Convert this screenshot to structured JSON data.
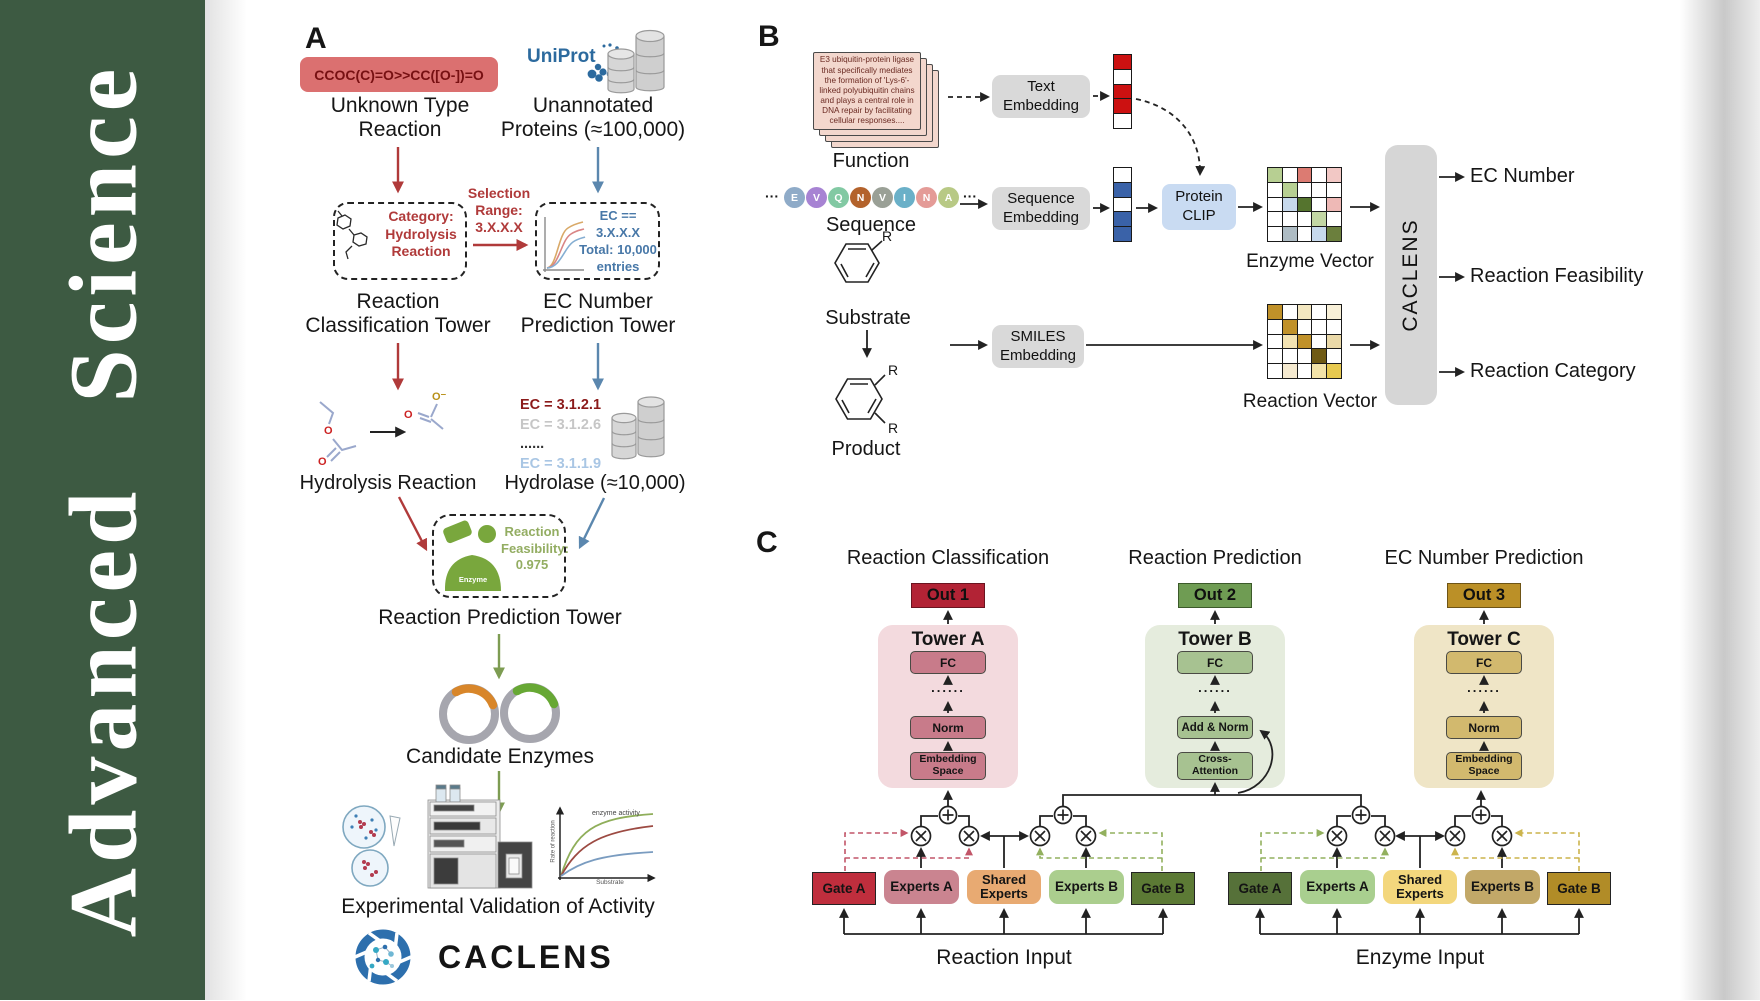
{
  "banner": {
    "title": "Advanced Science",
    "bg_color": "#3d5a42"
  },
  "panel_a": {
    "label": "A",
    "smiles": "CCOC(C)=O>>CC([O-])=O",
    "unknown_reaction": "Unknown Type\nReaction",
    "uniprot": "UniProt",
    "unannotated_proteins": "Unannotated\nProteins (≈100,000)",
    "category_box": "Category:\nHydrolysis\nReaction",
    "selection_range": "Selection\nRange:\n3.X.X.X",
    "ec_box": "EC == 3.X.X.X\nTotal: 10,000\nentries",
    "classification_tower": "Reaction\nClassification Tower",
    "ec_prediction_tower": "EC Number\nPrediction Tower",
    "hydrolysis_reaction": "Hydrolysis Reaction",
    "hydrolase": "Hydrolase (≈10,000)",
    "ec_list": [
      {
        "text": "EC = 3.1.2.1",
        "color": "#8b1a1a",
        "weight": "700"
      },
      {
        "text": "EC = 3.1.2.6",
        "color": "#c6c6c6",
        "weight": "600"
      },
      {
        "text": "......",
        "color": "#333333",
        "weight": "700"
      },
      {
        "text": "EC = 3.1.1.9",
        "color": "#a9c6e4",
        "weight": "600"
      }
    ],
    "atom_o": "O",
    "atom_o_minus": "O⁻",
    "enzyme_icon_label": "Enzyme",
    "feasibility": "Reaction\nFeasibility:\n0.975",
    "prediction_tower": "Reaction Prediction Tower",
    "candidate_enzymes": "Candidate Enzymes",
    "activity_plot": {
      "annotation": "enzyme activity",
      "ylabel": "Rate of reaction",
      "xlabel": "Substrate"
    },
    "validation": "Experimental Validation of Activity",
    "logo": "CACLENS"
  },
  "panel_b": {
    "label": "B",
    "function_card": "E3 ubiquitin-protein ligase that specifically mediates the formation of 'Lys-6'-linked polyubiquitin chains and plays a central role in DNA repair by facilitating cellular responses....",
    "function_label": "Function",
    "ellipsis": "···",
    "residues": [
      {
        "letter": "E",
        "color": "#8fabc8"
      },
      {
        "letter": "V",
        "color": "#a783d3"
      },
      {
        "letter": "Q",
        "color": "#82c9a3"
      },
      {
        "letter": "N",
        "color": "#b3622b"
      },
      {
        "letter": "V",
        "color": "#9aa096"
      },
      {
        "letter": "I",
        "color": "#6ab0c8"
      },
      {
        "letter": "N",
        "color": "#e49b97"
      },
      {
        "letter": "A",
        "color": "#b8c985"
      }
    ],
    "sequence_label": "Sequence",
    "substrate_label": "Substrate",
    "product_label": "Product",
    "r_label": "R",
    "text_embedding": "Text\nEmbedding",
    "sequence_embedding": "Sequence\nEmbedding",
    "smiles_embedding": "SMILES\nEmbedding",
    "protein_clip": "Protein\nCLIP",
    "text_vector": [
      "#cc1111",
      "#ffffff",
      "#cc1111",
      "#cc1111",
      "#ffffff"
    ],
    "sequence_vector": [
      "#ffffff",
      "#3a62a8",
      "#ffffff",
      "#3a62a8",
      "#3a62a8"
    ],
    "enzyme_matrix": [
      [
        "#b7cf92",
        "#ffffff",
        "#dc7b72",
        "#ffffff",
        "#f2c8c5"
      ],
      [
        "#ffffff",
        "#b7cf92",
        "#ffffff",
        "#ffffff",
        "#ffffff"
      ],
      [
        "#ffffff",
        "#c7d9ec",
        "#55742e",
        "#ffffff",
        "#eeb9b6"
      ],
      [
        "#ffffff",
        "#ffffff",
        "#ffffff",
        "#c3d7a4",
        "#ffffff"
      ],
      [
        "#ffffff",
        "#aebcc4",
        "#ffffff",
        "#c7d9ec",
        "#6b7f3d"
      ]
    ],
    "reaction_matrix": [
      [
        "#c09129",
        "#ffffff",
        "#f3e7c0",
        "#ffffff",
        "#f8f0d8"
      ],
      [
        "#ffffff",
        "#c09129",
        "#ffffff",
        "#ffffff",
        "#ffffff"
      ],
      [
        "#ffffff",
        "#f3e3b2",
        "#c09129",
        "#ffffff",
        "#ead9a8"
      ],
      [
        "#ffffff",
        "#ffffff",
        "#ffffff",
        "#6f5a14",
        "#ffffff"
      ],
      [
        "#ffffff",
        "#f5ead0",
        "#ffffff",
        "#f3e3a8",
        "#e7c94f"
      ]
    ],
    "enzyme_vector_label": "Enzyme Vector",
    "reaction_vector_label": "Reaction Vector",
    "caclens": "CACLENS",
    "outputs": [
      "EC Number",
      "Reaction Feasibility",
      "Reaction Category"
    ]
  },
  "panel_c": {
    "label": "C",
    "sections": [
      {
        "title": "Reaction Classification",
        "out": "Out 1",
        "tower": "Tower A",
        "fc": "FC",
        "dots": "......",
        "mid": "Norm",
        "bottom": "Embedding\nSpace"
      },
      {
        "title": "Reaction Prediction",
        "out": "Out 2",
        "tower": "Tower B",
        "fc": "FC",
        "dots": "......",
        "mid": "Add & Norm",
        "bottom": "Cross-\nAttention"
      },
      {
        "title": "EC Number Prediction",
        "out": "Out 3",
        "tower": "Tower C",
        "fc": "FC",
        "dots": "......",
        "mid": "Norm",
        "bottom": "Embedding\nSpace"
      }
    ],
    "moe": [
      {
        "gate_a": "Gate A",
        "experts_a": "Experts A",
        "shared": "Shared\nExperts",
        "experts_b": "Experts B",
        "gate_b": "Gate B",
        "input": "Reaction Input"
      },
      {
        "gate_a": "Gate A",
        "experts_a": "Experts A",
        "shared": "Shared\nExperts",
        "experts_b": "Experts B",
        "gate_b": "Gate B",
        "input": "Enzyme Input"
      }
    ]
  }
}
